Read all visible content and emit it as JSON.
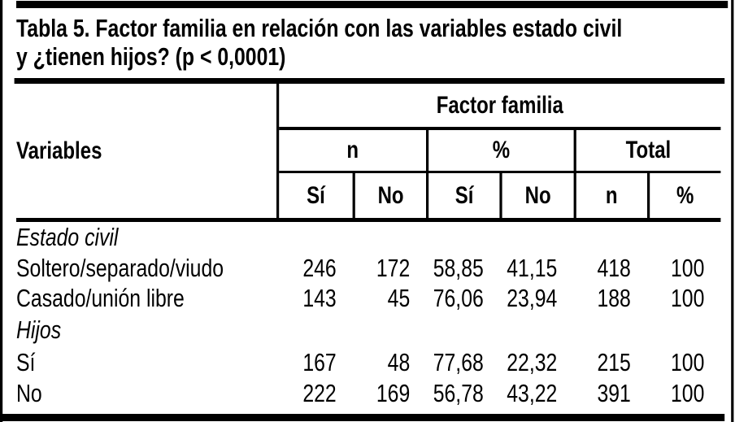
{
  "title": {
    "line1": "Tabla 5. Factor familia en relación con las variables estado civil",
    "line2": "y ¿tienen hijos? (p < 0,0001)"
  },
  "table": {
    "variables_label": "Variables",
    "group_header": "Factor familia",
    "subgroups": {
      "n": "n",
      "percent": "%",
      "total": "Total"
    },
    "columns": [
      "Sí",
      "No",
      "Sí",
      "No",
      "n",
      "%"
    ],
    "rows": [
      {
        "label": "Estado civil",
        "italic": true,
        "values": [
          "",
          "",
          "",
          "",
          "",
          ""
        ]
      },
      {
        "label": "Soltero/separado/viudo",
        "italic": false,
        "values": [
          "246",
          "172",
          "58,85",
          "41,15",
          "418",
          "100"
        ]
      },
      {
        "label": "Casado/unión libre",
        "italic": false,
        "values": [
          "143",
          "45",
          "76,06",
          "23,94",
          "188",
          "100"
        ]
      },
      {
        "label": "Hijos",
        "italic": true,
        "values": [
          "",
          "",
          "",
          "",
          "",
          ""
        ]
      },
      {
        "label": "Sí",
        "italic": false,
        "values": [
          "167",
          "48",
          "77,68",
          "22,32",
          "215",
          "100"
        ]
      },
      {
        "label": "No",
        "italic": false,
        "values": [
          "222",
          "169",
          "56,78",
          "43,22",
          "391",
          "100"
        ]
      }
    ]
  },
  "colors": {
    "ink": "#000000",
    "background": "#ffffff"
  }
}
